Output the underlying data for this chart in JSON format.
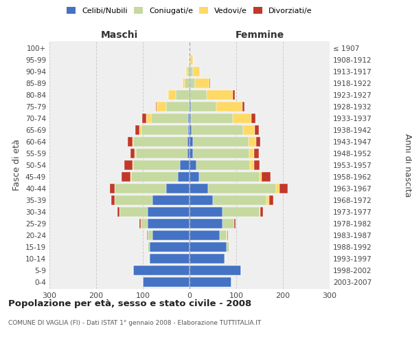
{
  "age_groups": [
    "0-4",
    "5-9",
    "10-14",
    "15-19",
    "20-24",
    "25-29",
    "30-34",
    "35-39",
    "40-44",
    "45-49",
    "50-54",
    "55-59",
    "60-64",
    "65-69",
    "70-74",
    "75-79",
    "80-84",
    "85-89",
    "90-94",
    "95-99",
    "100+"
  ],
  "birth_years": [
    "2003-2007",
    "1998-2002",
    "1993-1997",
    "1988-1992",
    "1983-1987",
    "1978-1982",
    "1973-1977",
    "1968-1972",
    "1963-1967",
    "1958-1962",
    "1953-1957",
    "1948-1952",
    "1943-1947",
    "1938-1942",
    "1933-1937",
    "1928-1932",
    "1923-1927",
    "1918-1922",
    "1913-1917",
    "1908-1912",
    "≤ 1907"
  ],
  "male": {
    "celibi": [
      100,
      120,
      85,
      85,
      80,
      90,
      90,
      80,
      50,
      25,
      20,
      5,
      5,
      3,
      3,
      0,
      0,
      0,
      0,
      0,
      0
    ],
    "coniugati": [
      0,
      0,
      2,
      5,
      10,
      15,
      60,
      80,
      110,
      100,
      100,
      110,
      115,
      100,
      80,
      50,
      30,
      10,
      5,
      2,
      0
    ],
    "vedovi": [
      0,
      0,
      0,
      0,
      0,
      0,
      0,
      0,
      1,
      2,
      2,
      2,
      2,
      5,
      10,
      20,
      15,
      5,
      3,
      0,
      0
    ],
    "divorziati": [
      0,
      0,
      0,
      0,
      1,
      2,
      5,
      8,
      10,
      18,
      18,
      10,
      10,
      8,
      8,
      2,
      0,
      0,
      0,
      0,
      0
    ]
  },
  "female": {
    "nubili": [
      90,
      110,
      75,
      80,
      65,
      70,
      70,
      50,
      40,
      20,
      15,
      8,
      7,
      5,
      3,
      3,
      2,
      2,
      2,
      0,
      0
    ],
    "coniugate": [
      0,
      0,
      2,
      5,
      15,
      25,
      80,
      115,
      145,
      130,
      115,
      120,
      120,
      110,
      90,
      55,
      35,
      10,
      5,
      2,
      0
    ],
    "vedove": [
      0,
      0,
      0,
      0,
      1,
      1,
      2,
      5,
      8,
      5,
      8,
      10,
      15,
      25,
      40,
      55,
      55,
      30,
      15,
      5,
      0
    ],
    "divorziate": [
      0,
      0,
      0,
      0,
      1,
      2,
      5,
      10,
      18,
      18,
      12,
      10,
      10,
      8,
      8,
      5,
      5,
      2,
      0,
      0,
      0
    ]
  },
  "colors": {
    "celibi": "#4472C4",
    "coniugati": "#c5d9a0",
    "vedovi": "#ffd966",
    "divorziati": "#c0392b"
  },
  "xlim": 300,
  "title": "Popolazione per età, sesso e stato civile - 2008",
  "subtitle": "COMUNE DI VAGLIA (FI) - Dati ISTAT 1° gennaio 2008 - Elaborazione TUTTITALIA.IT",
  "ylabel_left": "Fasce di età",
  "ylabel_right": "Anni di nascita",
  "xlabel_male": "Maschi",
  "xlabel_female": "Femmine",
  "bg_color": "#efefef",
  "grid_color": "#cccccc"
}
